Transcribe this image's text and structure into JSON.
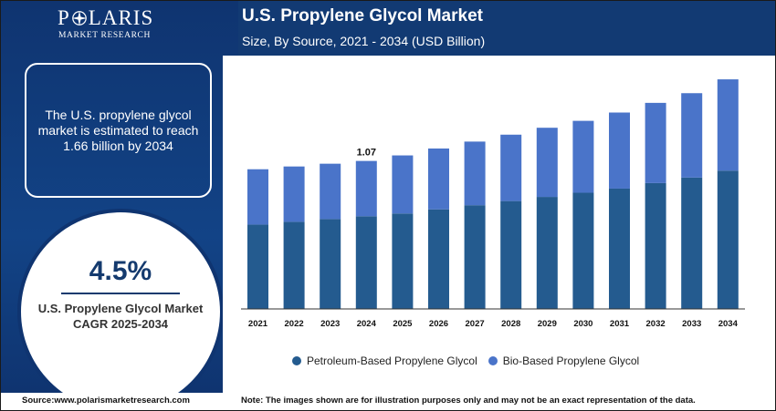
{
  "brand": {
    "name_left": "P",
    "name_right": "LARIS",
    "tagline": "MARKET RESEARCH"
  },
  "info_box": {
    "text": "The U.S. propylene glycol market is estimated to reach 1.66 billion by 2034"
  },
  "cagr": {
    "value": "4.5%",
    "label": "U.S. Propylene Glycol Market CAGR 2025-2034"
  },
  "footer": {
    "source": "Source:www.polarismarketresearch.com",
    "note": "Note: The images shown are for illustration purposes only and may not be an exact representation of the data."
  },
  "colors": {
    "background": "#123a73",
    "petroleum": "#245b8f",
    "bio": "#4a74c9"
  },
  "chart_data": {
    "type": "bar",
    "stacked": true,
    "title": "U.S. Propylene Glycol Market",
    "subtitle": "Size, By Source, 2021 - 2034 (USD Billion)",
    "categories": [
      "2021",
      "2022",
      "2023",
      "2024",
      "2025",
      "2026",
      "2027",
      "2028",
      "2029",
      "2030",
      "2031",
      "2032",
      "2033",
      "2034"
    ],
    "series": [
      {
        "name": "Petroleum-Based Propylene Glycol",
        "color": "#245b8f",
        "values": [
          0.61,
          0.63,
          0.65,
          0.67,
          0.69,
          0.72,
          0.75,
          0.78,
          0.81,
          0.84,
          0.87,
          0.91,
          0.95,
          1.0
        ]
      },
      {
        "name": "Bio-Based Propylene Glycol",
        "color": "#4a74c9",
        "values": [
          0.4,
          0.4,
          0.4,
          0.4,
          0.42,
          0.44,
          0.46,
          0.48,
          0.5,
          0.52,
          0.55,
          0.58,
          0.61,
          0.66
        ]
      }
    ],
    "data_labels": [
      {
        "category": "2024",
        "text": "1.07"
      }
    ],
    "ylim": [
      0,
      1.7
    ],
    "legend_position": "bottom",
    "grid": false
  }
}
